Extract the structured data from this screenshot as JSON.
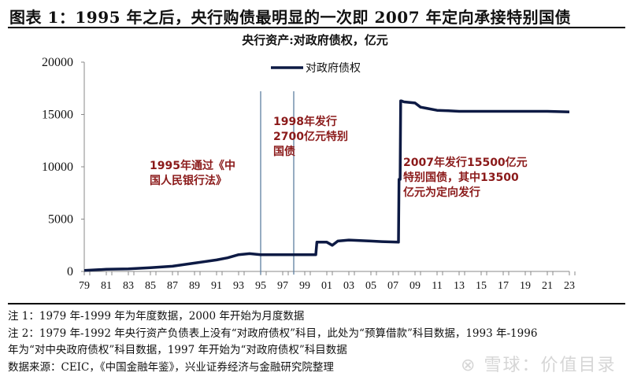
{
  "header": {
    "title": "图表 1：1995 年之后，央行购债最明显的一次即 2007 年定向承接特别国债"
  },
  "chart_data": {
    "type": "line",
    "title": "央行资产:对政府债权，亿元",
    "xlabel": "",
    "ylabel": "",
    "ylim": [
      0,
      20000
    ],
    "yticks": [
      "0",
      "5000",
      "10000",
      "15000",
      "20000"
    ],
    "xticks": [
      "79",
      "81",
      "83",
      "85",
      "87",
      "89",
      "91",
      "93",
      "95",
      "97",
      "99",
      "01",
      "03",
      "05",
      "07",
      "09",
      "11",
      "13",
      "15",
      "17",
      "19",
      "21",
      "23"
    ],
    "legend": [
      "对政府债权"
    ],
    "legend_position": "top-center",
    "grid": false,
    "series": [
      {
        "name": "对政府债权",
        "color": "#0d1a44",
        "x": [
          1979,
          1981,
          1983,
          1985,
          1987,
          1989,
          1991,
          1992,
          1993,
          1994,
          1995,
          1996,
          1997,
          1998,
          1999,
          2000,
          2000.1,
          2001,
          2001.5,
          2002,
          2003,
          2004,
          2005,
          2006,
          2007.5,
          2007.55,
          2007.65,
          2007.7,
          2007.75,
          2008,
          2009,
          2009.5,
          2010,
          2011,
          2012,
          2013,
          2015,
          2017,
          2019,
          2021,
          2023
        ],
        "values": [
          100,
          200,
          250,
          350,
          500,
          800,
          1100,
          1300,
          1600,
          1700,
          1600,
          1600,
          1600,
          1600,
          1600,
          1600,
          2800,
          2800,
          2500,
          2900,
          3000,
          2950,
          2900,
          2850,
          2800,
          8800,
          8800,
          16300,
          16300,
          16200,
          16100,
          15700,
          15600,
          15400,
          15350,
          15300,
          15300,
          15300,
          15300,
          15300,
          15250
        ]
      }
    ],
    "vertical_markers": [
      1995,
      1998
    ],
    "annotations": [
      {
        "text": [
          "1995年通过《中",
          "国人民银行法》"
        ]
      },
      {
        "text": [
          "1998年发行",
          "2700亿元特别",
          "国债"
        ]
      },
      {
        "text": [
          "2007年发行15500亿元",
          "特别国债，其中13500",
          "亿元为定向发行"
        ]
      }
    ]
  },
  "notes": {
    "note1": "注 1：1979 年-1999 年为年度数据，2000 年开始为月度数据",
    "note2a": "注 2：1979 年-1992 年央行资产负债表上没有“对政府债权”科目，此处为“预算借款”科目数据，1993 年-1996",
    "note2b": "年为“对中央政府债权”科目数据，1997 年开始为“对政府债权”科目数据",
    "source": "数据来源：CEIC，《中国金融年鉴》，兴业证券经济与金融研究院整理"
  },
  "watermark": "雪球：价值目录"
}
